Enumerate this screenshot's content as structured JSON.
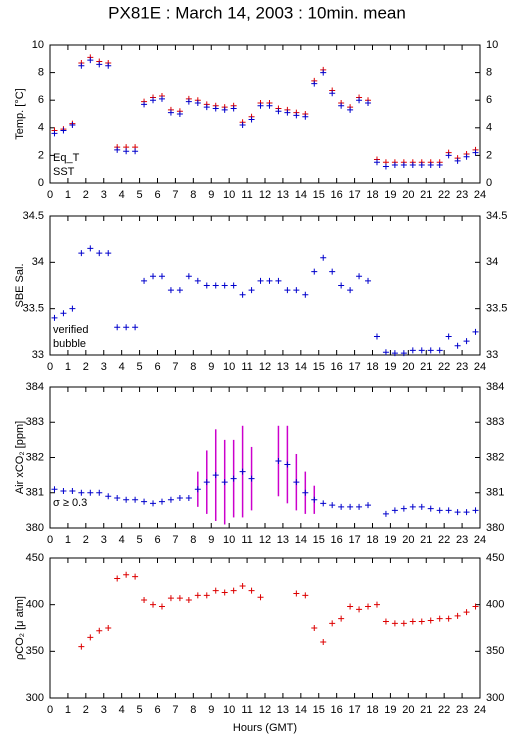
{
  "chart_data": [
    {
      "type": "scatter",
      "title": "PX81E : March 14, 2003 : 10min. mean",
      "ylabel": "Temp. [°C]",
      "x": [
        0.25,
        0.75,
        1.25,
        1.75,
        2.25,
        2.75,
        3.25,
        3.75,
        4.25,
        4.75,
        5.25,
        5.75,
        6.25,
        6.75,
        7.25,
        7.75,
        8.25,
        8.75,
        9.25,
        9.75,
        10.25,
        10.75,
        11.25,
        11.75,
        12.25,
        12.75,
        13.25,
        13.75,
        14.25,
        14.75,
        15.25,
        15.75,
        16.25,
        16.75,
        17.25,
        17.75,
        18.25,
        18.75,
        19.25,
        19.75,
        20.25,
        20.75,
        21.25,
        21.75,
        22.25,
        22.75,
        23.25,
        23.75
      ],
      "xlim": [
        0,
        24
      ],
      "xticks": [
        0,
        1,
        2,
        3,
        4,
        5,
        6,
        7,
        8,
        9,
        10,
        11,
        12,
        13,
        14,
        15,
        16,
        17,
        18,
        19,
        20,
        21,
        22,
        23,
        24
      ],
      "ylim": [
        0,
        10
      ],
      "yticks": [
        0,
        2,
        4,
        6,
        8,
        10
      ],
      "series": [
        {
          "name": "Eq_T",
          "color": "#dd0000",
          "values": [
            3.8,
            3.9,
            4.3,
            8.7,
            9.1,
            8.8,
            8.7,
            2.6,
            2.6,
            2.6,
            5.9,
            6.2,
            6.3,
            5.3,
            5.2,
            6.1,
            6.0,
            5.7,
            5.6,
            5.5,
            5.6,
            4.4,
            4.8,
            5.8,
            5.8,
            5.4,
            5.3,
            5.1,
            5.0,
            7.4,
            8.2,
            6.7,
            5.8,
            5.5,
            6.2,
            6.0,
            1.7,
            1.5,
            1.5,
            1.5,
            1.5,
            1.5,
            1.5,
            1.5,
            2.2,
            1.8,
            2.1,
            2.4
          ]
        },
        {
          "name": "SST",
          "color": "#0000cc",
          "values": [
            3.6,
            3.8,
            4.2,
            8.5,
            8.9,
            8.6,
            8.5,
            2.4,
            2.3,
            2.3,
            5.7,
            6.0,
            6.1,
            5.1,
            5.0,
            5.9,
            5.8,
            5.5,
            5.4,
            5.3,
            5.4,
            4.2,
            4.6,
            5.6,
            5.6,
            5.2,
            5.1,
            4.9,
            4.8,
            7.2,
            8.0,
            6.5,
            5.6,
            5.3,
            6.0,
            5.8,
            1.5,
            1.2,
            1.3,
            1.3,
            1.3,
            1.3,
            1.3,
            1.3,
            2.0,
            1.6,
            1.9,
            2.2
          ]
        }
      ]
    },
    {
      "type": "scatter",
      "ylabel": "SBE Sal.",
      "x": [
        0.25,
        0.75,
        1.25,
        1.75,
        2.25,
        2.75,
        3.25,
        3.75,
        4.25,
        4.75,
        5.25,
        5.75,
        6.25,
        6.75,
        7.25,
        7.75,
        8.25,
        8.75,
        9.25,
        9.75,
        10.25,
        10.75,
        11.25,
        11.75,
        12.25,
        12.75,
        13.25,
        13.75,
        14.25,
        14.75,
        15.25,
        15.75,
        16.25,
        16.75,
        17.25,
        17.75,
        18.25,
        18.75,
        19.25,
        19.75,
        20.25,
        20.75,
        21.25,
        21.75,
        22.25,
        22.75,
        23.25,
        23.75
      ],
      "xlim": [
        0,
        24
      ],
      "xticks": [
        0,
        1,
        2,
        3,
        4,
        5,
        6,
        7,
        8,
        9,
        10,
        11,
        12,
        13,
        14,
        15,
        16,
        17,
        18,
        19,
        20,
        21,
        22,
        23,
        24
      ],
      "ylim": [
        33,
        34.5
      ],
      "yticks": [
        33,
        33.5,
        34,
        34.5
      ],
      "series": [
        {
          "name": "verified",
          "color": "#0000cc",
          "values": [
            33.4,
            33.45,
            33.5,
            34.1,
            34.15,
            34.1,
            34.1,
            33.3,
            33.3,
            33.3,
            33.8,
            33.85,
            33.85,
            33.7,
            33.7,
            33.85,
            33.8,
            33.75,
            33.75,
            33.75,
            33.75,
            33.65,
            33.7,
            33.8,
            33.8,
            33.8,
            33.7,
            33.7,
            33.65,
            33.9,
            34.05,
            33.9,
            33.75,
            33.7,
            33.85,
            33.8,
            33.2,
            33.03,
            33.02,
            33.02,
            33.05,
            33.05,
            33.05,
            33.05,
            33.2,
            33.1,
            33.15,
            33.25
          ]
        },
        {
          "name": "bubble",
          "color": "#cc00cc",
          "values": [
            null,
            null,
            null,
            null,
            null,
            null,
            null,
            null,
            null,
            null,
            null,
            null,
            null,
            null,
            null,
            null,
            null,
            null,
            null,
            null,
            null,
            null,
            null,
            null,
            null,
            null,
            null,
            null,
            null,
            null,
            null,
            null,
            null,
            null,
            null,
            null,
            null,
            null,
            null,
            null,
            null,
            null,
            null,
            null,
            null,
            null,
            null,
            null
          ]
        }
      ]
    },
    {
      "type": "scatter",
      "ylabel": "Air xCO₂ [ppm]",
      "annotation": "σ ≥ 0.3",
      "annotation_color": "#cc00cc",
      "x": [
        0.25,
        0.75,
        1.25,
        1.75,
        2.25,
        2.75,
        3.25,
        3.75,
        4.25,
        4.75,
        5.25,
        5.75,
        6.25,
        6.75,
        7.25,
        7.75,
        8.25,
        8.75,
        9.25,
        9.75,
        10.25,
        10.75,
        11.25,
        11.75,
        12.25,
        12.75,
        13.25,
        13.75,
        14.25,
        14.75,
        15.25,
        15.75,
        16.25,
        16.75,
        17.25,
        17.75,
        18.25,
        18.75,
        19.25,
        19.75,
        20.25,
        20.75,
        21.25,
        21.75,
        22.25,
        22.75,
        23.25,
        23.75
      ],
      "xlim": [
        0,
        24
      ],
      "xticks": [
        0,
        1,
        2,
        3,
        4,
        5,
        6,
        7,
        8,
        9,
        10,
        11,
        12,
        13,
        14,
        15,
        16,
        17,
        18,
        19,
        20,
        21,
        22,
        23,
        24
      ],
      "ylim": [
        380,
        384
      ],
      "yticks": [
        380,
        381,
        382,
        383,
        384
      ],
      "series": [
        {
          "color": "#0000cc",
          "error_color": "#cc00cc",
          "values": [
            381.1,
            381.05,
            381.05,
            381.0,
            381.0,
            381.0,
            380.9,
            380.85,
            380.8,
            380.8,
            380.75,
            380.7,
            380.75,
            380.8,
            380.85,
            380.85,
            381.1,
            381.3,
            381.5,
            381.3,
            381.4,
            381.6,
            381.4,
            null,
            null,
            381.9,
            381.8,
            381.3,
            381.0,
            380.8,
            380.7,
            380.65,
            380.6,
            380.6,
            380.6,
            380.65,
            null,
            380.4,
            380.5,
            380.55,
            380.6,
            380.6,
            380.55,
            380.5,
            380.5,
            380.45,
            380.45,
            380.5
          ],
          "errors": [
            null,
            null,
            null,
            null,
            null,
            null,
            null,
            null,
            null,
            null,
            null,
            null,
            null,
            null,
            null,
            null,
            0.5,
            0.9,
            1.3,
            1.2,
            1.1,
            1.3,
            0.9,
            null,
            null,
            1.0,
            1.1,
            0.8,
            0.6,
            0.4,
            null,
            null,
            null,
            null,
            null,
            null,
            null,
            null,
            null,
            null,
            null,
            null,
            null,
            null,
            null,
            null,
            null,
            null
          ]
        }
      ]
    },
    {
      "type": "scatter",
      "ylabel": "ρCO₂ [μ atm]",
      "xlabel": "Hours (GMT)",
      "x": [
        0.25,
        0.75,
        1.25,
        1.75,
        2.25,
        2.75,
        3.25,
        3.75,
        4.25,
        4.75,
        5.25,
        5.75,
        6.25,
        6.75,
        7.25,
        7.75,
        8.25,
        8.75,
        9.25,
        9.75,
        10.25,
        10.75,
        11.25,
        11.75,
        12.25,
        12.75,
        13.25,
        13.75,
        14.25,
        14.75,
        15.25,
        15.75,
        16.25,
        16.75,
        17.25,
        17.75,
        18.25,
        18.75,
        19.25,
        19.75,
        20.25,
        20.75,
        21.25,
        21.75,
        22.25,
        22.75,
        23.25,
        23.75
      ],
      "xlim": [
        0,
        24
      ],
      "xticks": [
        0,
        1,
        2,
        3,
        4,
        5,
        6,
        7,
        8,
        9,
        10,
        11,
        12,
        13,
        14,
        15,
        16,
        17,
        18,
        19,
        20,
        21,
        22,
        23,
        24
      ],
      "ylim": [
        300,
        450
      ],
      "yticks": [
        300,
        350,
        400,
        450
      ],
      "series": [
        {
          "color": "#dd0000",
          "values": [
            null,
            null,
            null,
            355,
            365,
            372,
            375,
            428,
            432,
            430,
            405,
            400,
            398,
            407,
            407,
            405,
            410,
            410,
            415,
            413,
            415,
            420,
            415,
            408,
            null,
            null,
            null,
            412,
            410,
            375,
            360,
            380,
            385,
            398,
            395,
            398,
            400,
            382,
            380,
            380,
            382,
            382,
            383,
            385,
            385,
            388,
            392,
            398
          ]
        }
      ]
    }
  ]
}
